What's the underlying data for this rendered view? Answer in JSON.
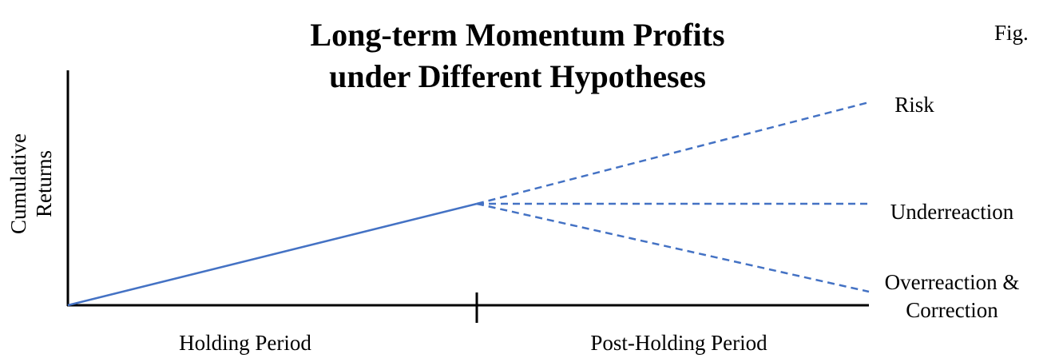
{
  "title": {
    "lines": [
      "Long-term Momentum Profits",
      "under Different Hypotheses"
    ]
  },
  "figure_tag": "Fig.",
  "y_axis_label": {
    "lines": [
      "Cumulative",
      "Returns"
    ]
  },
  "x_axis_sections": [
    "Holding Period",
    "Post-Holding Period"
  ],
  "scenarios": [
    {
      "label_lines": [
        "Risk"
      ]
    },
    {
      "label_lines": [
        "Underreaction"
      ]
    },
    {
      "label_lines": [
        "Overreaction &",
        "Correction"
      ]
    }
  ]
}
